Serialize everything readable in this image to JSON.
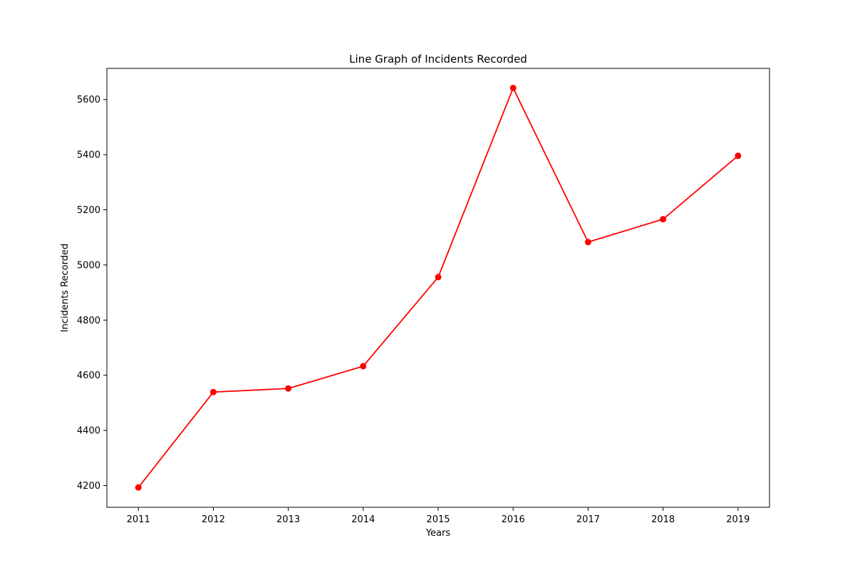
{
  "chart_data": {
    "type": "line",
    "title": "Line Graph of Incidents Recorded",
    "xlabel": "Years",
    "ylabel": "Incidents Recorded",
    "x": [
      2011,
      2012,
      2013,
      2014,
      2015,
      2016,
      2017,
      2018,
      2019
    ],
    "series": [
      {
        "values": [
          4193,
          4539,
          4552,
          4633,
          4956,
          5642,
          5083,
          5166,
          5396
        ],
        "color": "#ff0000",
        "marker": "circle"
      }
    ],
    "xlim": [
      2010.58,
      2019.42
    ],
    "ylim": [
      4121,
      5713
    ],
    "xticks": [
      2011,
      2012,
      2013,
      2014,
      2015,
      2016,
      2017,
      2018,
      2019
    ],
    "yticks": [
      4200,
      4400,
      4600,
      4800,
      5000,
      5200,
      5400,
      5600
    ],
    "grid": false,
    "legend": "none"
  }
}
